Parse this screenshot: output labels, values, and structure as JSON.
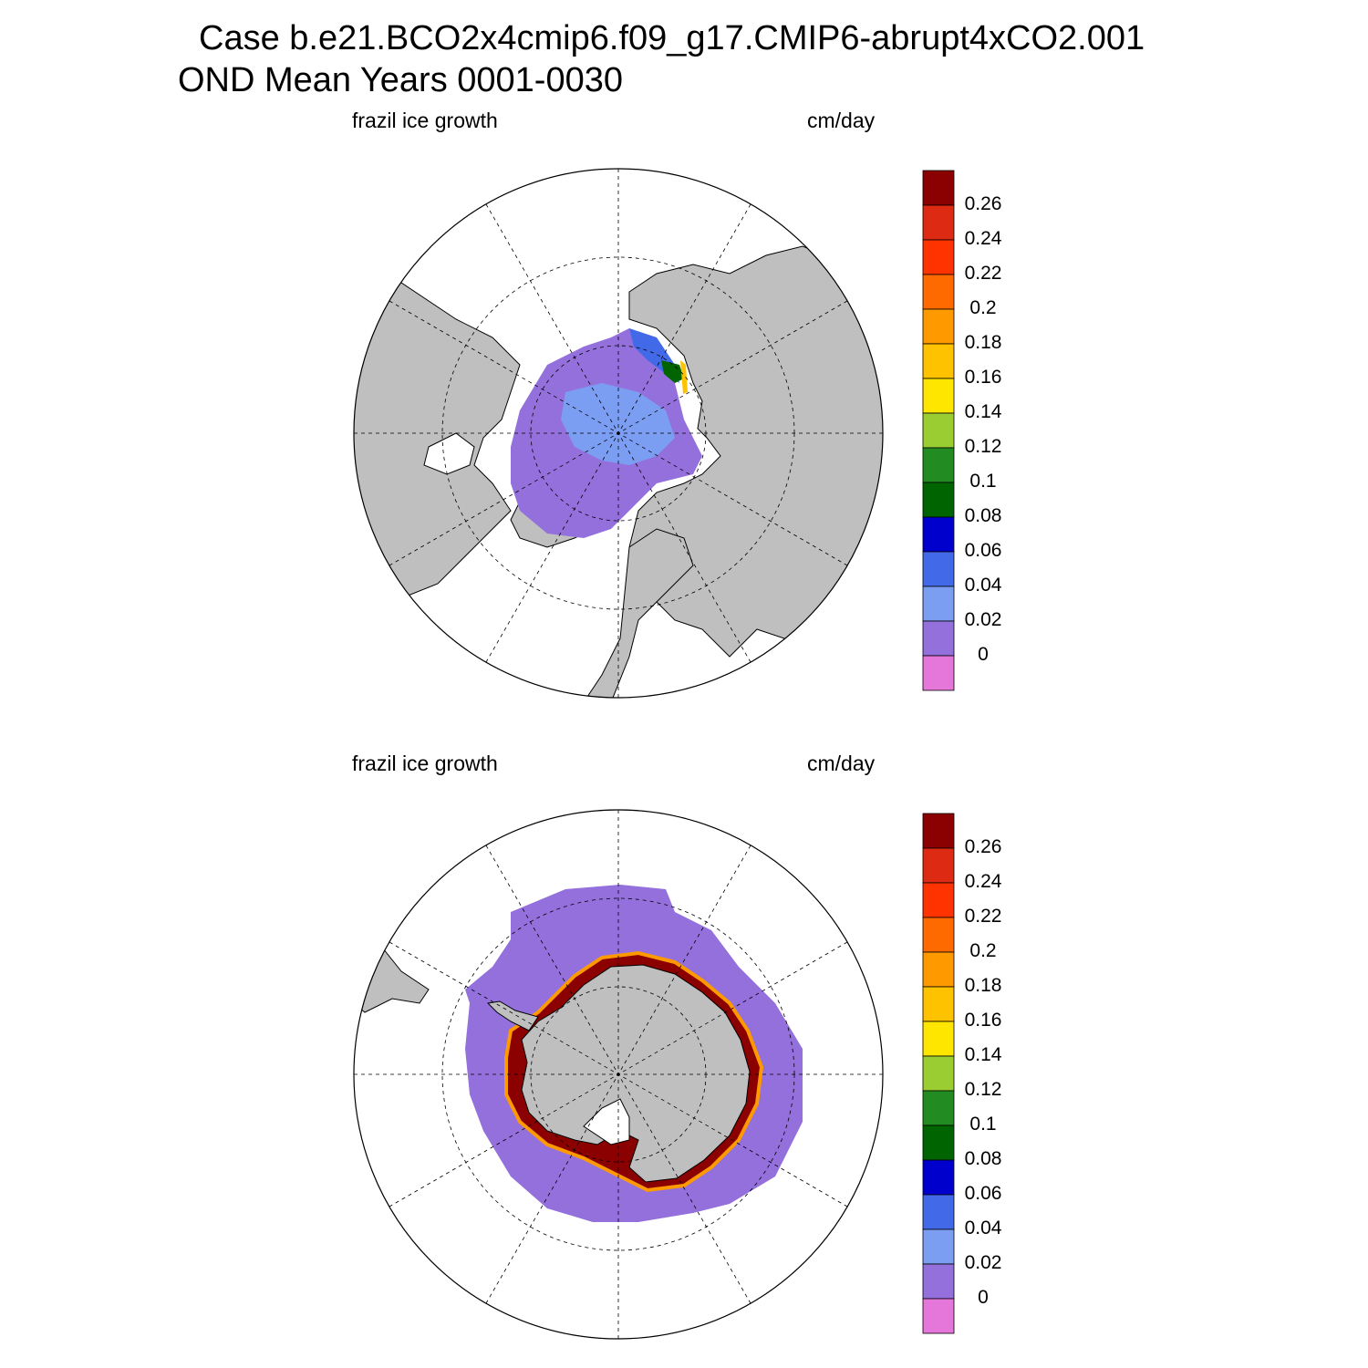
{
  "title": {
    "line1": "Case b.e21.BCO2x4cmip6.f09_g17.CMIP6-abrupt4xCO2.001",
    "line2": "OND Mean    Years 0001-0030"
  },
  "colors": {
    "land": "#bfbfbf",
    "no_data": "#ffffff",
    "coastline": "#000000",
    "graticule": "#000000"
  },
  "colorbar": {
    "levels": [
      "0",
      "0.02",
      "0.04",
      "0.06",
      "0.08",
      "0.1",
      "0.12",
      "0.14",
      "0.16",
      "0.18",
      "0.2",
      "0.22",
      "0.24",
      "0.26"
    ],
    "colors": [
      "#e477d9",
      "#9370db",
      "#7b9ef3",
      "#4169e8",
      "#0000cd",
      "#006400",
      "#228b22",
      "#9acd32",
      "#ffe600",
      "#ffc200",
      "#ff9900",
      "#ff6a00",
      "#ff3300",
      "#dd2a12",
      "#8b0000"
    ]
  },
  "panels": [
    {
      "id": "arctic",
      "hemisphere": "Northern",
      "variable_label": "frazil ice growth",
      "units_label": "cm/day",
      "projection": "polar stereographic, north pole",
      "dominant_values": "mostly 0.02–0.04 over Arctic Ocean; up to 0.10–0.16 along Kara/Laptev coast"
    },
    {
      "id": "antarctic",
      "hemisphere": "Southern",
      "variable_label": "frazil ice growth",
      "units_label": "cm/day",
      "projection": "polar stereographic, south pole",
      "dominant_values": "mostly 0.02 over sea-ice zone; >0.26 along Antarctic coast"
    }
  ]
}
